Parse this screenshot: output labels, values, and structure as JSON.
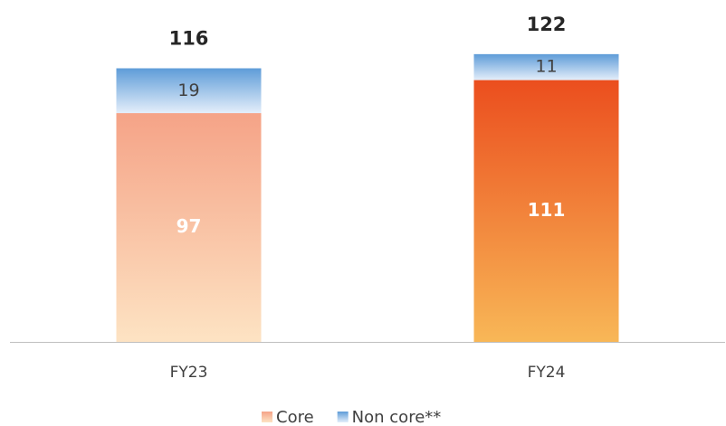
{
  "chart_data": {
    "type": "stacked_bar",
    "categories": [
      "FY23",
      "FY24"
    ],
    "series": [
      {
        "name": "Core",
        "values": [
          97,
          111
        ],
        "colors": [
          [
            "#f5a387",
            "#fde3c3"
          ],
          [
            "#eb4e1e",
            "#f8b757"
          ]
        ],
        "label_color": "#ffffff"
      },
      {
        "name": "Non core**",
        "values": [
          19,
          11
        ],
        "colors": [
          [
            "#5e9cd8",
            "#e4eefa"
          ],
          [
            "#5e9cd8",
            "#e4eefa"
          ]
        ],
        "label_color": "#404040"
      }
    ],
    "totals": [
      116,
      122
    ],
    "ylim": [
      0,
      130
    ]
  }
}
